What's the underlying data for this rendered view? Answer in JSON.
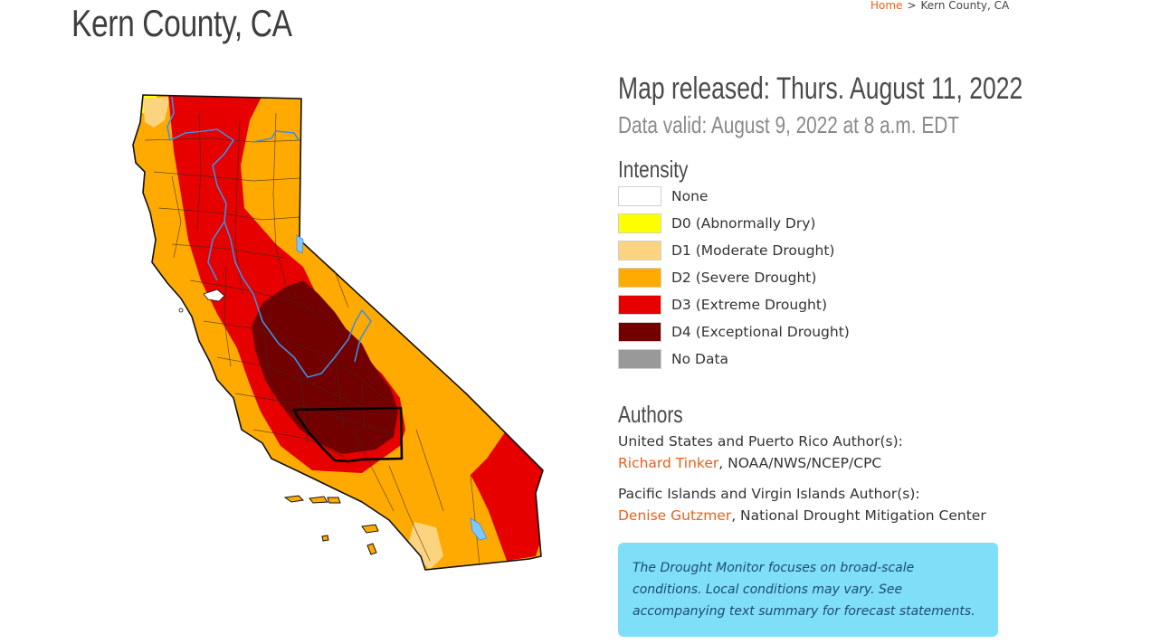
{
  "page": {
    "title": "Kern County, CA"
  },
  "breadcrumb": {
    "home": "Home",
    "separator": ">",
    "current": "Kern County, CA"
  },
  "map_info": {
    "released": "Map released: Thurs. August 11, 2022",
    "valid": "Data valid: August 9, 2022 at 8 a.m. EDT"
  },
  "intensity": {
    "heading": "Intensity",
    "items": [
      {
        "label": "None",
        "color": "#ffffff"
      },
      {
        "label": "D0 (Abnormally Dry)",
        "color": "#ffff00"
      },
      {
        "label": "D1 (Moderate Drought)",
        "color": "#fcd37f"
      },
      {
        "label": "D2 (Severe Drought)",
        "color": "#ffaa00"
      },
      {
        "label": "D3 (Extreme Drought)",
        "color": "#e60000"
      },
      {
        "label": "D4 (Exceptional Drought)",
        "color": "#730000"
      },
      {
        "label": "No Data",
        "color": "#999999"
      }
    ]
  },
  "authors": {
    "heading": "Authors",
    "us_pr_label": "United States and Puerto Rico Author(s):",
    "us_pr_name": "Richard Tinker",
    "us_pr_org": ", NOAA/NWS/NCEP/CPC",
    "pi_vi_label": "Pacific Islands and Virgin Islands Author(s):",
    "pi_vi_name": "Denise Gutzmer",
    "pi_vi_org": ", National Drought Mitigation Center"
  },
  "notice": "The Drought Monitor focuses on broad-scale conditions. Local conditions may vary. See accompanying text summary for forecast statements.",
  "colors": {
    "link": "#e8601c",
    "notice_bg": "#7fdff8",
    "river": "#3d8fe0",
    "county_line": "#1a1a1a"
  }
}
